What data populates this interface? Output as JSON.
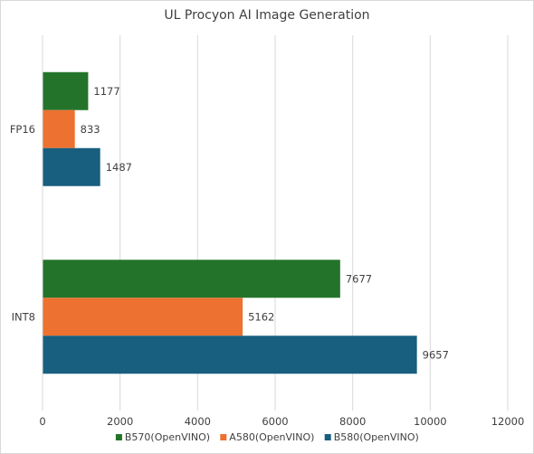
{
  "chart_data": {
    "type": "bar",
    "orientation": "horizontal",
    "title": "UL Procyon AI Image Generation",
    "categories": [
      "FP16",
      "INT8"
    ],
    "series": [
      {
        "name": "B570(OpenVINO)",
        "color": "#23742a",
        "values": [
          1177,
          7677
        ]
      },
      {
        "name": "A580(OpenVINO)",
        "color": "#ed7130",
        "values": [
          833,
          5162
        ]
      },
      {
        "name": "B580(OpenVINO)",
        "color": "#175e7f",
        "values": [
          1487,
          9657
        ]
      }
    ],
    "x_ticks": [
      "0",
      "2000",
      "4000",
      "6000",
      "8000",
      "10000",
      "12000"
    ],
    "xlim": [
      0,
      12000
    ],
    "xlabel": "",
    "ylabel": "",
    "grid": "vertical",
    "legend_position": "bottom"
  }
}
